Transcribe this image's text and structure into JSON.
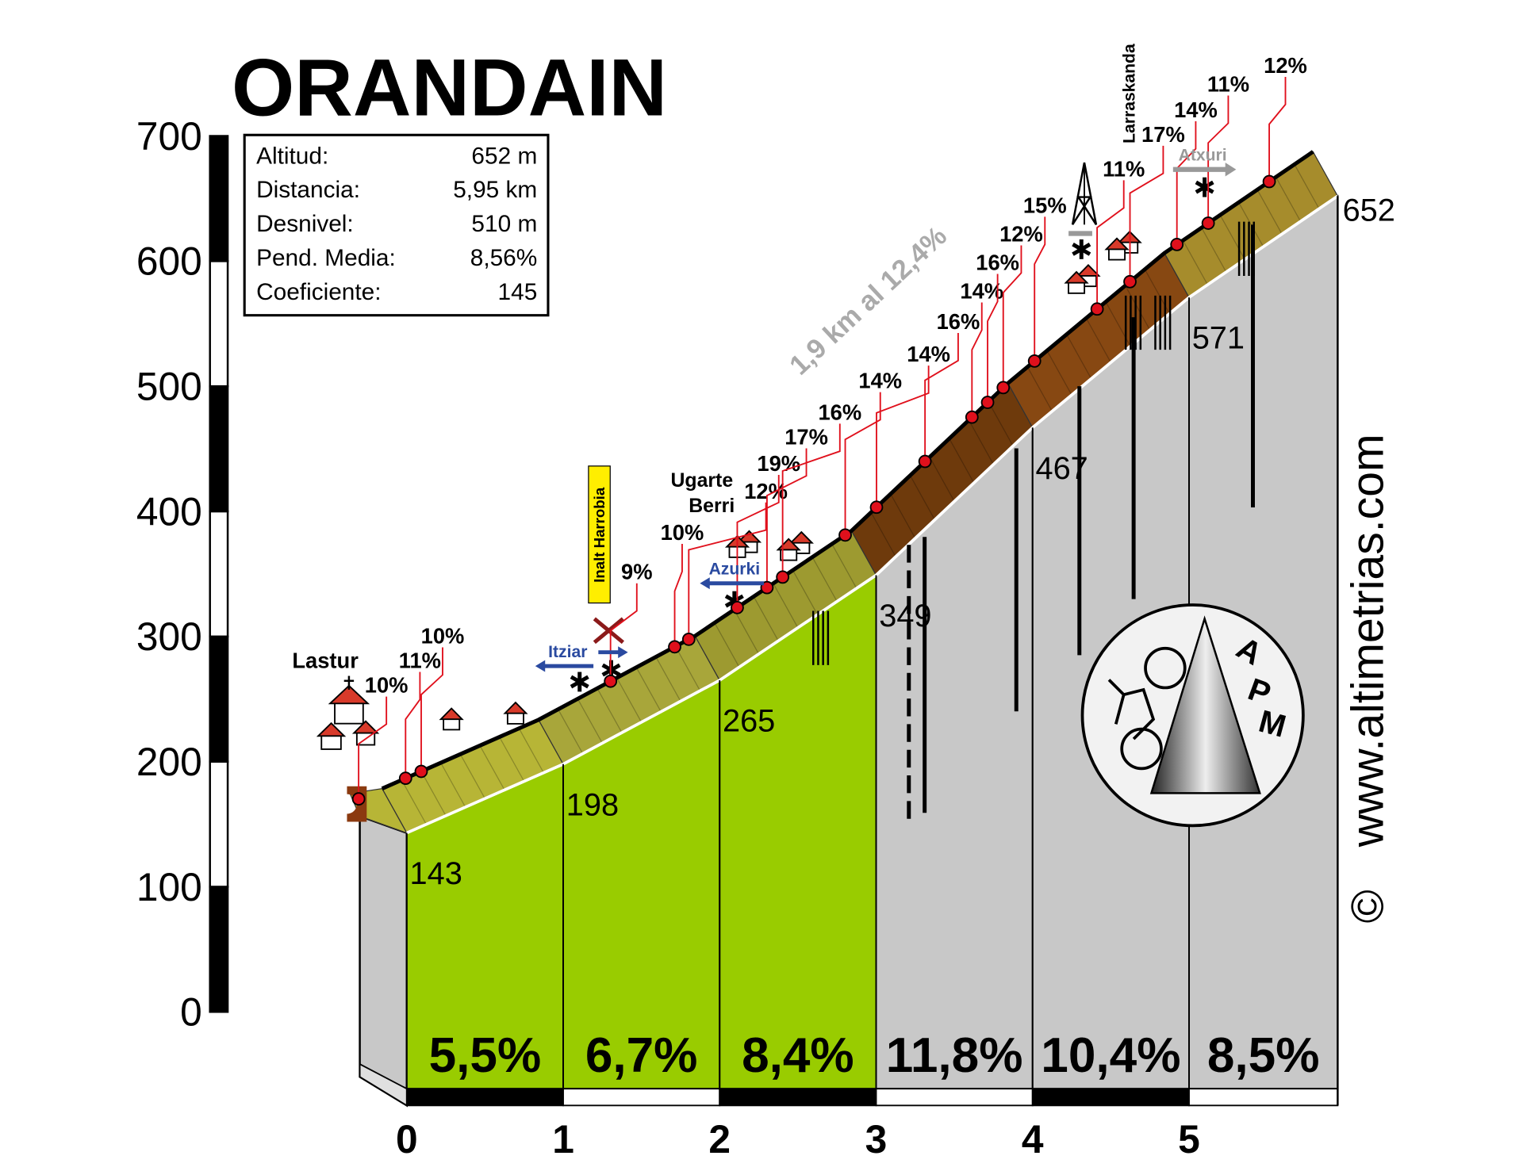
{
  "chart_data": {
    "type": "profile",
    "title": "ORANDAIN",
    "stats": [
      {
        "label": "Altitud:",
        "value": "652 m"
      },
      {
        "label": "Distancia:",
        "value": "5,95 km"
      },
      {
        "label": "Desnivel:",
        "value": "510 m"
      },
      {
        "label": "Pend. Media:",
        "value": "8,56%"
      },
      {
        "label": "Coeficiente:",
        "value": "145"
      }
    ],
    "ylim": [
      0,
      700
    ],
    "yticks": [
      0,
      100,
      200,
      300,
      400,
      500,
      600,
      700
    ],
    "xlim": [
      -0.3,
      5.95
    ],
    "xticks": [
      0,
      1,
      2,
      3,
      4,
      5
    ],
    "x": [
      0,
      1,
      2,
      3,
      4,
      5,
      5.95
    ],
    "altitudes": [
      143,
      198,
      265,
      349,
      467,
      571,
      652
    ],
    "segments": {
      "values": [
        5.5,
        6.7,
        8.4,
        11.8,
        10.4,
        8.5
      ],
      "value_labels": [
        "5,5%",
        "6,7%",
        "8,4%",
        "11,8%",
        "10,4%",
        "8,5%"
      ],
      "colors": [
        "#99cc00",
        "#99cc00",
        "#99cc00",
        "#c8c8c8",
        "#c8c8c8",
        "#c8c8c8"
      ],
      "ribbon_colors": [
        "#b7b536",
        "#a8a63a",
        "#9d9a30",
        "#6e3a0c",
        "#874812",
        "#a68c2c"
      ]
    },
    "pitches": {
      "x": [
        -0.15,
        0.15,
        0.25,
        1.46,
        1.87,
        1.96,
        2.27,
        2.46,
        2.56,
        2.96,
        3.16,
        3.47,
        3.77,
        3.87,
        3.97,
        4.17,
        4.57,
        4.78,
        5.08,
        5.28,
        5.67
      ],
      "values": [
        10,
        11,
        10,
        9,
        10,
        12,
        19,
        17,
        16,
        14,
        14,
        16,
        14,
        16,
        12,
        15,
        11,
        17,
        14,
        11,
        12
      ],
      "value_labels": [
        "10%",
        "11%",
        "10%",
        "9%",
        "10%",
        "12%",
        "19%",
        "17%",
        "16%",
        "14%",
        "14%",
        "16%",
        "14%",
        "16%",
        "12%",
        "15%",
        "11%",
        "17%",
        "14%",
        "11%",
        "12%"
      ],
      "color": "#e0101c"
    },
    "places": [
      "Lastur",
      "Ugarte",
      "Berri",
      "Inalt Harrobia",
      "Azurki",
      "Itziar",
      "Atxuri",
      "Larraskanda"
    ],
    "annotation": "1,9 km al 12,4%",
    "website": "www.altimetrias.com",
    "copyright": "©",
    "logo": [
      "A",
      "P",
      "M"
    ]
  }
}
